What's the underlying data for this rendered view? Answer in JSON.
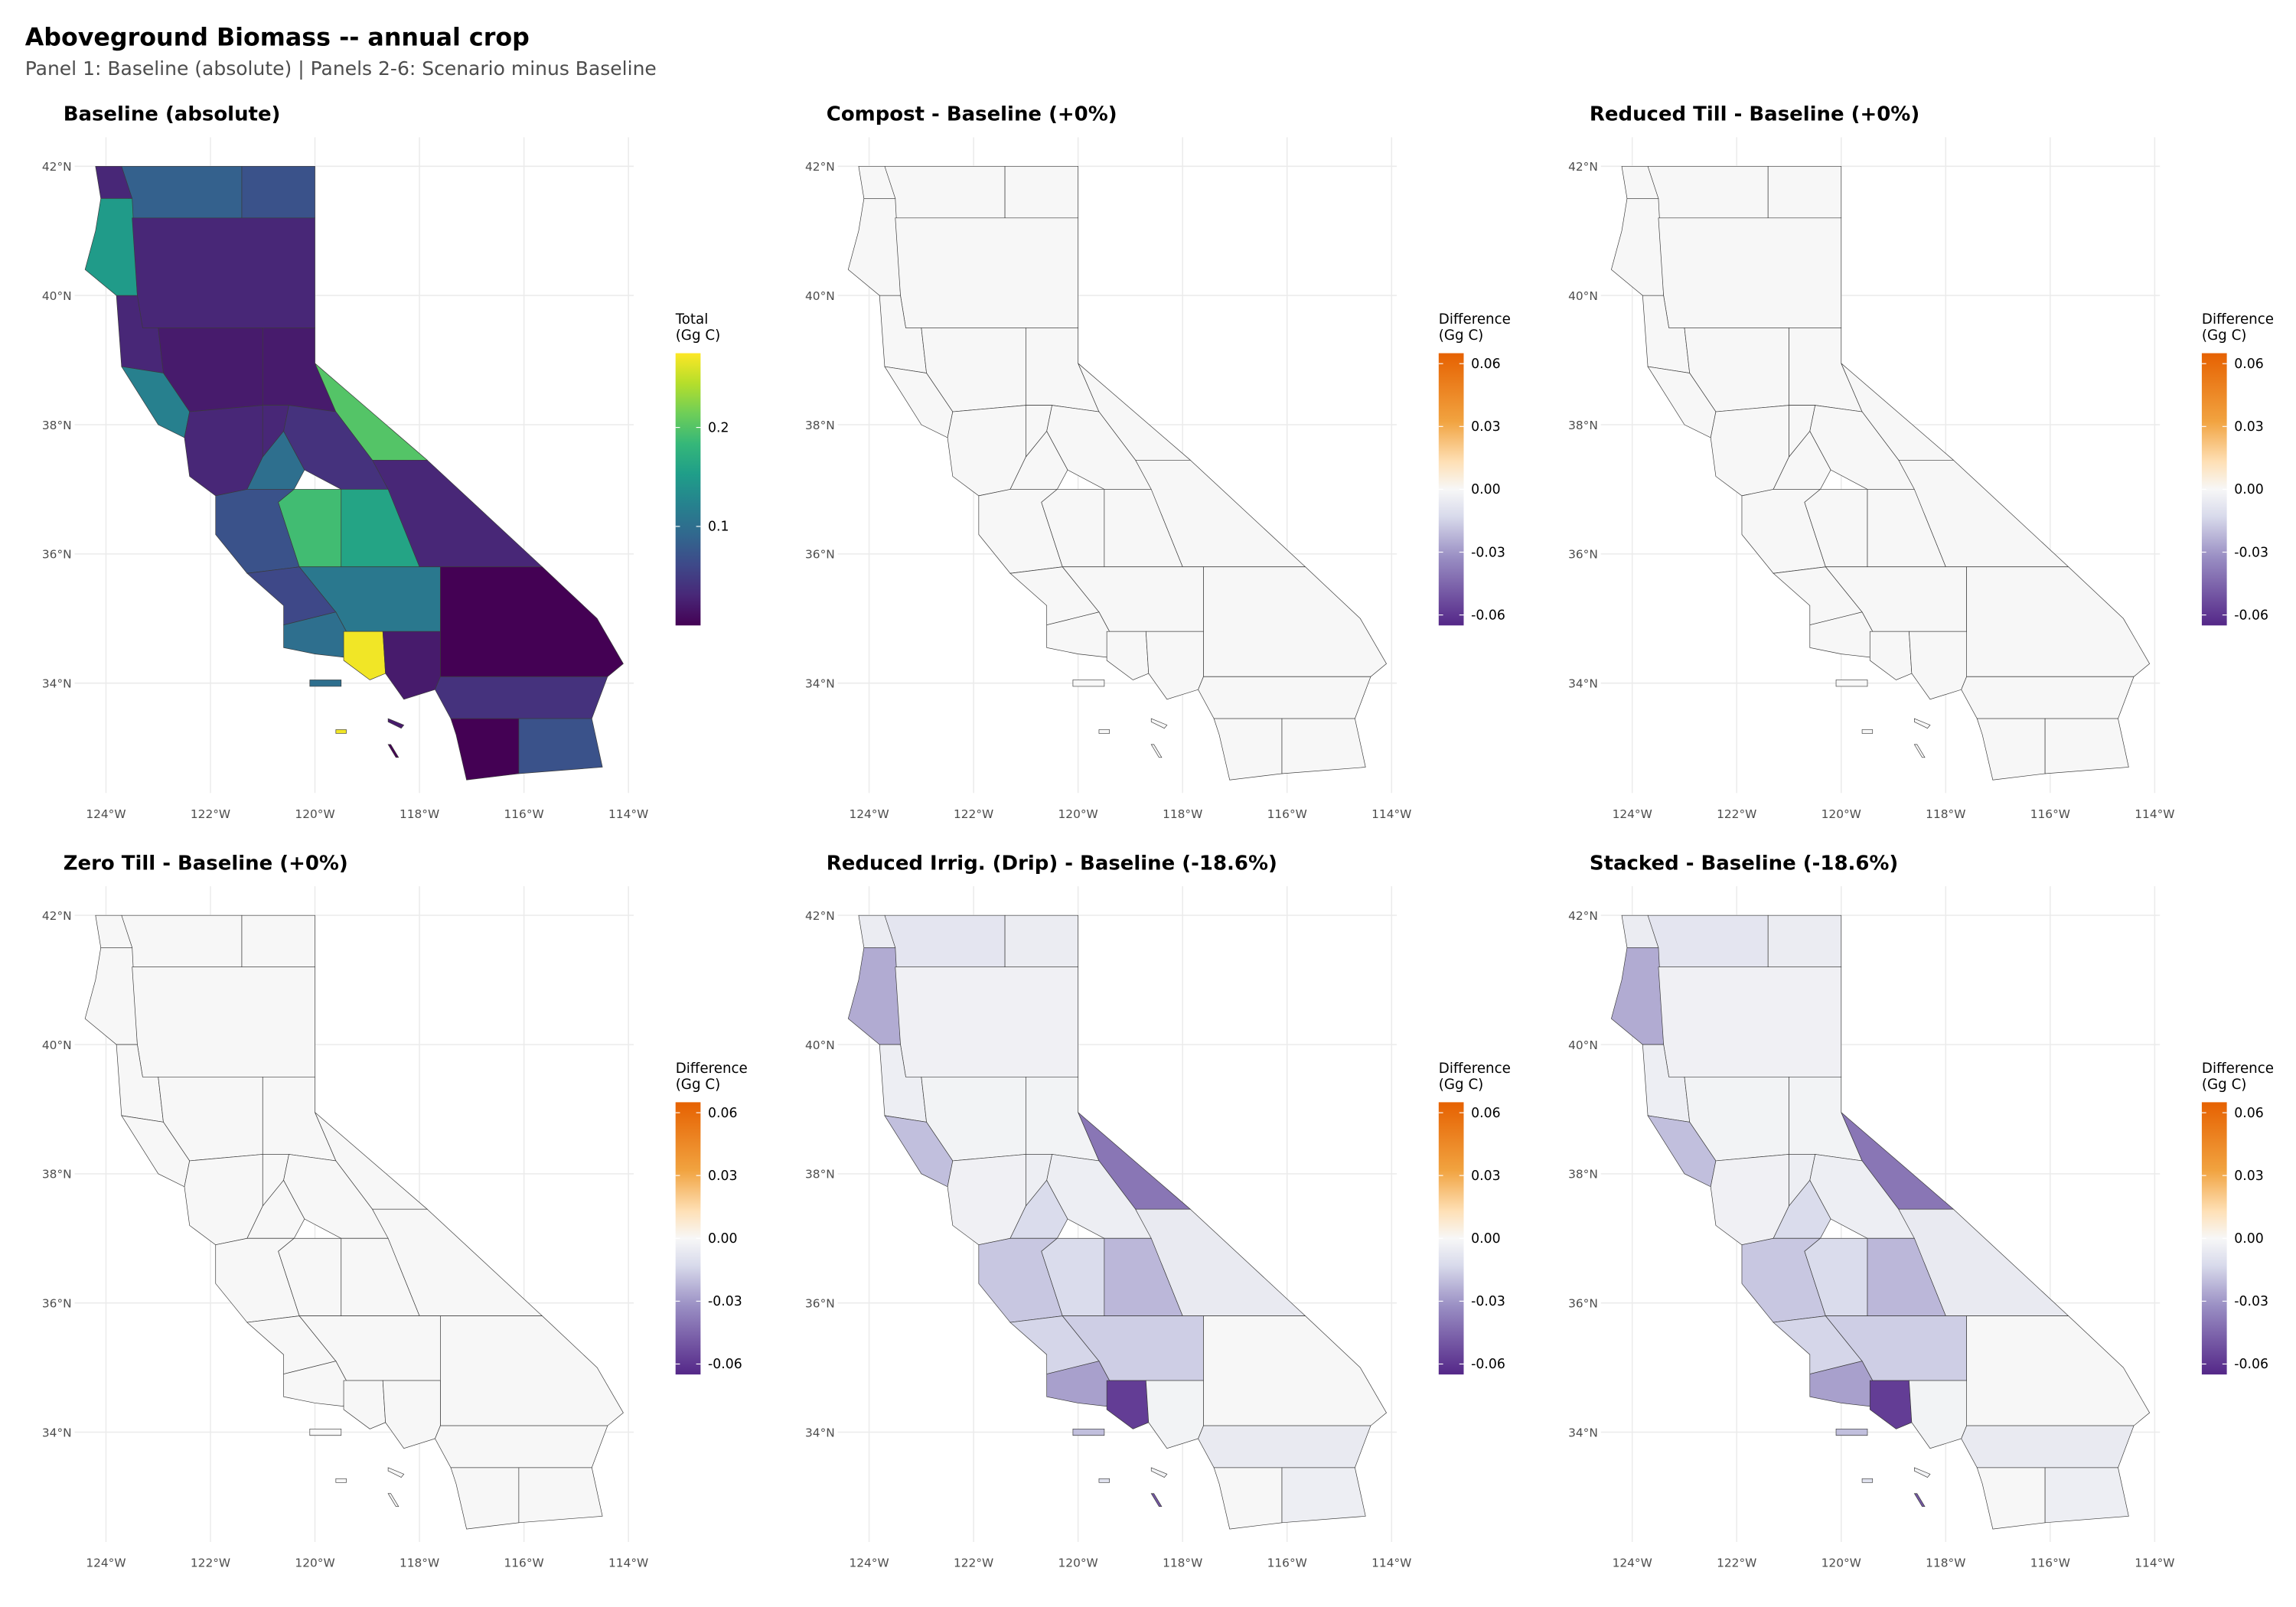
{
  "figure": {
    "title": "Aboveground Biomass -- annual crop",
    "subtitle": "Panel 1: Baseline (absolute) | Panels 2-6: Scenario minus Baseline"
  },
  "colors": {
    "viridis": [
      "#440154",
      "#482878",
      "#3e4989",
      "#31688e",
      "#26828e",
      "#1f9e89",
      "#35b779",
      "#6ece58",
      "#b5de2b",
      "#fde725"
    ],
    "diverging": {
      "low": "#542788",
      "mid_low": "#998ec3",
      "near_low": "#d8daeb",
      "zero": "#f7f7f7",
      "near_high": "#fee0b6",
      "mid_high": "#f1a340",
      "high": "#e66101"
    },
    "grid": "#ebebeb",
    "border": "#3a3a3a"
  },
  "axes": {
    "lon_ticks": [
      {
        "value": -124,
        "label": "124°W"
      },
      {
        "value": -122,
        "label": "122°W"
      },
      {
        "value": -120,
        "label": "120°W"
      },
      {
        "value": -118,
        "label": "118°W"
      },
      {
        "value": -116,
        "label": "116°W"
      },
      {
        "value": -114,
        "label": "114°W"
      }
    ],
    "lat_ticks": [
      {
        "value": 34,
        "label": "34°N"
      },
      {
        "value": 36,
        "label": "36°N"
      },
      {
        "value": 38,
        "label": "38°N"
      },
      {
        "value": 40,
        "label": "40°N"
      },
      {
        "value": 42,
        "label": "42°N"
      }
    ],
    "lon_range": [
      -124.6,
      -113.9
    ],
    "lat_range": [
      32.3,
      42.45
    ]
  },
  "chart_data": [
    {
      "type": "choropleth",
      "title": "Baseline (absolute)",
      "scale": "viridis",
      "legend_title": [
        "Total",
        "(Gg C)"
      ],
      "legend_range": [
        0,
        0.275
      ],
      "legend_ticks": [
        {
          "value": 0.1,
          "label": "0.1"
        },
        {
          "value": 0.2,
          "label": "0.2"
        }
      ]
    },
    {
      "type": "choropleth",
      "title": "Compost - Baseline (+0%)",
      "scale": "diverging",
      "legend_title": [
        "Difference",
        "(Gg C)"
      ],
      "legend_range": [
        -0.065,
        0.065
      ],
      "legend_ticks": [
        {
          "value": 0.06,
          "label": "0.06"
        },
        {
          "value": 0.03,
          "label": "0.03"
        },
        {
          "value": 0,
          "label": "0.00"
        },
        {
          "value": -0.03,
          "label": "-0.03"
        },
        {
          "value": -0.06,
          "label": "-0.06"
        }
      ]
    },
    {
      "type": "choropleth",
      "title": "Reduced Till - Baseline (+0%)",
      "scale": "diverging",
      "legend_title": [
        "Difference",
        "(Gg C)"
      ],
      "legend_range": [
        -0.065,
        0.065
      ],
      "legend_ticks": [
        {
          "value": 0.06,
          "label": "0.06"
        },
        {
          "value": 0.03,
          "label": "0.03"
        },
        {
          "value": 0,
          "label": "0.00"
        },
        {
          "value": -0.03,
          "label": "-0.03"
        },
        {
          "value": -0.06,
          "label": "-0.06"
        }
      ]
    },
    {
      "type": "choropleth",
      "title": "Zero Till - Baseline (+0%)",
      "scale": "diverging",
      "legend_title": [
        "Difference",
        "(Gg C)"
      ],
      "legend_range": [
        -0.065,
        0.065
      ],
      "legend_ticks": [
        {
          "value": 0.06,
          "label": "0.06"
        },
        {
          "value": 0.03,
          "label": "0.03"
        },
        {
          "value": 0,
          "label": "0.00"
        },
        {
          "value": -0.03,
          "label": "-0.03"
        },
        {
          "value": -0.06,
          "label": "-0.06"
        }
      ]
    },
    {
      "type": "choropleth",
      "title": "Reduced Irrig. (Drip) - Baseline (-18.6%)",
      "scale": "diverging",
      "legend_title": [
        "Difference",
        "(Gg C)"
      ],
      "legend_range": [
        -0.065,
        0.065
      ],
      "legend_ticks": [
        {
          "value": 0.06,
          "label": "0.06"
        },
        {
          "value": 0.03,
          "label": "0.03"
        },
        {
          "value": 0,
          "label": "0.00"
        },
        {
          "value": -0.03,
          "label": "-0.03"
        },
        {
          "value": -0.06,
          "label": "-0.06"
        }
      ]
    },
    {
      "type": "choropleth",
      "title": "Stacked - Baseline (-18.6%)",
      "scale": "diverging",
      "legend_title": [
        "Difference",
        "(Gg C)"
      ],
      "legend_range": [
        -0.065,
        0.065
      ],
      "legend_ticks": [
        {
          "value": 0.06,
          "label": "0.06"
        },
        {
          "value": 0.03,
          "label": "0.03"
        },
        {
          "value": 0,
          "label": "0.00"
        },
        {
          "value": -0.03,
          "label": "-0.03"
        },
        {
          "value": -0.06,
          "label": "-0.06"
        }
      ]
    }
  ],
  "regions": [
    {
      "id": "siskiyou",
      "poly": [
        [
          -123.7,
          42
        ],
        [
          -121.4,
          42
        ],
        [
          -121.4,
          41.2
        ],
        [
          -123.5,
          41.2
        ]
      ],
      "values": [
        0.085,
        0,
        0,
        0,
        -0.008,
        -0.008
      ]
    },
    {
      "id": "del-norte",
      "poly": [
        [
          -124.2,
          42
        ],
        [
          -123.7,
          42
        ],
        [
          -123.5,
          41.5
        ],
        [
          -124.1,
          41.5
        ]
      ],
      "values": [
        0.03,
        0,
        0,
        0,
        -0.005,
        -0.005
      ]
    },
    {
      "id": "modoc",
      "poly": [
        [
          -121.4,
          42
        ],
        [
          -120,
          42
        ],
        [
          -120,
          41.2
        ],
        [
          -121.4,
          41.2
        ]
      ],
      "values": [
        0.07,
        0,
        0,
        0,
        -0.005,
        -0.005
      ]
    },
    {
      "id": "humboldt",
      "poly": [
        [
          -124.1,
          41.5
        ],
        [
          -123.5,
          41.5
        ],
        [
          -123.4,
          40
        ],
        [
          -123.8,
          40
        ],
        [
          -124.4,
          40.4
        ],
        [
          -124.2,
          41
        ]
      ],
      "values": [
        0.15,
        0,
        0,
        0,
        -0.025,
        -0.025
      ]
    },
    {
      "id": "north-interior",
      "poly": [
        [
          -123.5,
          41.2
        ],
        [
          -120,
          41.2
        ],
        [
          -120,
          39.5
        ],
        [
          -123.3,
          39.5
        ],
        [
          -123.4,
          40
        ]
      ],
      "values": [
        0.03,
        0,
        0,
        0,
        -0.003,
        -0.003
      ]
    },
    {
      "id": "mendocino",
      "poly": [
        [
          -123.8,
          40
        ],
        [
          -123.4,
          40
        ],
        [
          -123.3,
          39.5
        ],
        [
          -123,
          39.5
        ],
        [
          -122.9,
          38.8
        ],
        [
          -123.7,
          38.9
        ]
      ],
      "values": [
        0.03,
        0,
        0,
        0,
        -0.004,
        -0.004
      ]
    },
    {
      "id": "sacramento-valley",
      "poly": [
        [
          -123,
          39.5
        ],
        [
          -121,
          39.5
        ],
        [
          -121,
          38.3
        ],
        [
          -122.4,
          38.2
        ],
        [
          -122.9,
          38.8
        ]
      ],
      "values": [
        0.02,
        0,
        0,
        0,
        -0.002,
        -0.002
      ]
    },
    {
      "id": "sonoma-marin",
      "poly": [
        [
          -123.7,
          38.9
        ],
        [
          -122.9,
          38.8
        ],
        [
          -122.4,
          38.2
        ],
        [
          -122.5,
          37.8
        ],
        [
          -123,
          38
        ]
      ],
      "values": [
        0.12,
        0,
        0,
        0,
        -0.02,
        -0.02
      ]
    },
    {
      "id": "sierra-north",
      "poly": [
        [
          -121,
          39.5
        ],
        [
          -120,
          39.5
        ],
        [
          -120,
          38.95
        ],
        [
          -119.6,
          38.2
        ],
        [
          -120.5,
          38.3
        ],
        [
          -121,
          38.3
        ]
      ],
      "values": [
        0.02,
        0,
        0,
        0,
        -0.002,
        -0.002
      ]
    },
    {
      "id": "mono",
      "poly": [
        [
          -120,
          38.95
        ],
        [
          -117.85,
          37.45
        ],
        [
          -118.9,
          37.45
        ],
        [
          -119.6,
          38.2
        ]
      ],
      "values": [
        0.2,
        0,
        0,
        0,
        -0.04,
        -0.04
      ]
    },
    {
      "id": "inyo",
      "poly": [
        [
          -117.85,
          37.45
        ],
        [
          -115.65,
          35.8
        ],
        [
          -118,
          35.8
        ],
        [
          -118.4,
          36.6
        ],
        [
          -118.9,
          37.45
        ]
      ],
      "values": [
        0.03,
        0,
        0,
        0,
        -0.006,
        -0.006
      ]
    },
    {
      "id": "bay-area",
      "poly": [
        [
          -122.4,
          38.2
        ],
        [
          -121,
          38.3
        ],
        [
          -121,
          37.5
        ],
        [
          -121.3,
          37
        ],
        [
          -121.9,
          36.9
        ],
        [
          -122.4,
          37.2
        ],
        [
          -122.5,
          37.8
        ]
      ],
      "values": [
        0.03,
        0,
        0,
        0,
        -0.003,
        -0.003
      ]
    },
    {
      "id": "san-joaquin",
      "poly": [
        [
          -121,
          38.3
        ],
        [
          -120.5,
          38.3
        ],
        [
          -120.6,
          37.9
        ],
        [
          -121,
          37.5
        ]
      ],
      "values": [
        0.03,
        0,
        0,
        0,
        -0.004,
        -0.004
      ]
    },
    {
      "id": "merced",
      "poly": [
        [
          -121,
          37.5
        ],
        [
          -120.6,
          37.9
        ],
        [
          -120.2,
          37.3
        ],
        [
          -120.4,
          37
        ],
        [
          -121.3,
          37
        ]
      ],
      "values": [
        0.1,
        0,
        0,
        0,
        -0.012,
        -0.012
      ]
    },
    {
      "id": "sierra-central",
      "poly": [
        [
          -120.5,
          38.3
        ],
        [
          -119.6,
          38.2
        ],
        [
          -118.9,
          37.45
        ],
        [
          -118.6,
          37
        ],
        [
          -119.5,
          37
        ],
        [
          -120.2,
          37.3
        ],
        [
          -120.6,
          37.9
        ]
      ],
      "values": [
        0.04,
        0,
        0,
        0,
        -0.004,
        -0.004
      ]
    },
    {
      "id": "monterey",
      "poly": [
        [
          -121.9,
          36.9
        ],
        [
          -121.3,
          37
        ],
        [
          -120.4,
          37
        ],
        [
          -120.7,
          36.8
        ],
        [
          -120.3,
          35.8
        ],
        [
          -121.3,
          35.7
        ],
        [
          -121.9,
          36.3
        ]
      ],
      "values": [
        0.07,
        0,
        0,
        0,
        -0.018,
        -0.018
      ]
    },
    {
      "id": "fresno",
      "poly": [
        [
          -120.7,
          36.8
        ],
        [
          -120.4,
          37
        ],
        [
          -119.5,
          37
        ],
        [
          -119.5,
          35.8
        ],
        [
          -120.3,
          35.8
        ]
      ],
      "values": [
        0.19,
        0,
        0,
        0,
        -0.012,
        -0.012
      ]
    },
    {
      "id": "tulare",
      "poly": [
        [
          -119.5,
          37
        ],
        [
          -118.6,
          37
        ],
        [
          -118.4,
          36.6
        ],
        [
          -118,
          35.8
        ],
        [
          -119.5,
          35.8
        ]
      ],
      "values": [
        0.16,
        0,
        0,
        0,
        -0.022,
        -0.022
      ]
    },
    {
      "id": "san-luis-obispo",
      "poly": [
        [
          -121.3,
          35.7
        ],
        [
          -120.3,
          35.8
        ],
        [
          -119.6,
          35.1
        ],
        [
          -120.6,
          34.9
        ],
        [
          -120.6,
          35.2
        ]
      ],
      "values": [
        0.06,
        0,
        0,
        0,
        -0.014,
        -0.014
      ]
    },
    {
      "id": "kern",
      "poly": [
        [
          -120.3,
          35.8
        ],
        [
          -117.6,
          35.8
        ],
        [
          -117.6,
          34.8
        ],
        [
          -119.4,
          34.8
        ],
        [
          -119.6,
          35.1
        ]
      ],
      "values": [
        0.11,
        0,
        0,
        0,
        -0.016,
        -0.016
      ]
    },
    {
      "id": "san-bernardino",
      "poly": [
        [
          -117.6,
          35.8
        ],
        [
          -115.65,
          35.8
        ],
        [
          -114.6,
          35
        ],
        [
          -114.1,
          34.3
        ],
        [
          -114.4,
          34.1
        ],
        [
          -117.6,
          34.1
        ]
      ],
      "values": [
        0.0,
        0,
        0,
        0,
        0,
        0
      ]
    },
    {
      "id": "santa-barbara",
      "poly": [
        [
          -120.6,
          34.9
        ],
        [
          -119.6,
          35.1
        ],
        [
          -119.4,
          34.8
        ],
        [
          -119.45,
          34.4
        ],
        [
          -120,
          34.45
        ],
        [
          -120.6,
          34.55
        ]
      ],
      "values": [
        0.1,
        0,
        0,
        0,
        -0.028,
        -0.028
      ]
    },
    {
      "id": "ventura",
      "poly": [
        [
          -119.45,
          34.8
        ],
        [
          -118.7,
          34.8
        ],
        [
          -118.65,
          34.15
        ],
        [
          -118.95,
          34.05
        ],
        [
          -119.45,
          34.35
        ]
      ],
      "values": [
        0.27,
        0,
        0,
        0,
        -0.058,
        -0.058
      ]
    },
    {
      "id": "los-angeles",
      "poly": [
        [
          -118.7,
          34.8
        ],
        [
          -117.6,
          34.8
        ],
        [
          -117.6,
          34.1
        ],
        [
          -117.7,
          33.9
        ],
        [
          -118.3,
          33.75
        ],
        [
          -118.65,
          34.15
        ]
      ],
      "values": [
        0.02,
        0,
        0,
        0,
        -0.002,
        -0.002
      ]
    },
    {
      "id": "riverside",
      "poly": [
        [
          -117.6,
          34.1
        ],
        [
          -114.4,
          34.1
        ],
        [
          -114.7,
          33.45
        ],
        [
          -117.4,
          33.45
        ],
        [
          -117.7,
          33.9
        ]
      ],
      "values": [
        0.04,
        0,
        0,
        0,
        -0.006,
        -0.006
      ]
    },
    {
      "id": "san-diego",
      "poly": [
        [
          -117.4,
          33.45
        ],
        [
          -116.1,
          33.45
        ],
        [
          -116.1,
          32.6
        ],
        [
          -117.1,
          32.5
        ],
        [
          -117.3,
          33.2
        ]
      ],
      "values": [
        0.0,
        0,
        0,
        0,
        0,
        0
      ]
    },
    {
      "id": "imperial",
      "poly": [
        [
          -116.1,
          33.45
        ],
        [
          -114.7,
          33.45
        ],
        [
          -114.5,
          32.7
        ],
        [
          -116.1,
          32.6
        ]
      ],
      "values": [
        0.07,
        0,
        0,
        0,
        -0.004,
        -0.004
      ]
    },
    {
      "id": "island-santa-cruz",
      "poly": [
        [
          -120.1,
          34.05
        ],
        [
          -119.5,
          34.05
        ],
        [
          -119.5,
          33.95
        ],
        [
          -120.1,
          33.95
        ]
      ],
      "values": [
        0.1,
        0,
        0,
        0,
        -0.02,
        -0.02
      ]
    },
    {
      "id": "island-catalina",
      "poly": [
        [
          -118.6,
          33.45
        ],
        [
          -118.3,
          33.35
        ],
        [
          -118.35,
          33.3
        ],
        [
          -118.6,
          33.4
        ]
      ],
      "values": [
        0.02,
        0,
        0,
        0,
        -0.002,
        -0.002
      ]
    },
    {
      "id": "island-san-clemente",
      "poly": [
        [
          -118.6,
          33.05
        ],
        [
          -118.45,
          32.85
        ],
        [
          -118.4,
          32.85
        ],
        [
          -118.55,
          33.05
        ]
      ],
      "values": [
        0.0,
        0,
        0,
        0,
        -0.05,
        -0.05
      ]
    },
    {
      "id": "island-san-nicolas",
      "poly": [
        [
          -119.6,
          33.28
        ],
        [
          -119.4,
          33.28
        ],
        [
          -119.4,
          33.22
        ],
        [
          -119.6,
          33.22
        ]
      ],
      "values": [
        0.27,
        0,
        0,
        0,
        -0.01,
        -0.01
      ]
    }
  ]
}
